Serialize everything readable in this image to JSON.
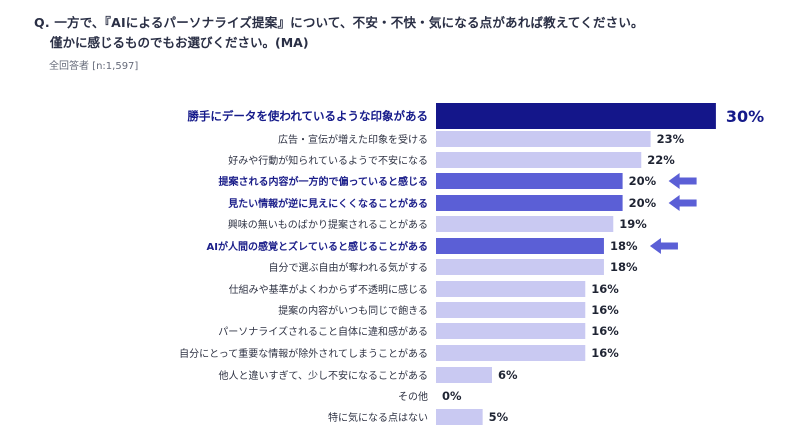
{
  "question": {
    "line1": "Q. 一方で、『AIによるパーソナライズ提案』について、不安・不快・気になる点があれば教えてください。",
    "line2": "僅かに感じるものでもお選びください。(MA)",
    "base": "全回答者 [n:1,597]"
  },
  "colors": {
    "top_bar": "#14168a",
    "highlight_bar": "#5b5fd6",
    "normal_bar": "#c9c9f2",
    "arrow": "#5b5fd6"
  },
  "chart_data": {
    "type": "bar",
    "orientation": "horizontal",
    "title": "",
    "unit": "%",
    "xlim": [
      0,
      30
    ],
    "categories": [
      "勝手にデータを使われているような印象がある",
      "広告・宣伝が増えた印象を受ける",
      "好みや行動が知られているようで不安になる",
      "提案される内容が一方的で偏っていると感じる",
      "見たい情報が逆に見えにくくなることがある",
      "興味の無いものばかり提案されることがある",
      "AIが人間の感覚とズレていると感じることがある",
      "自分で選ぶ自由が奪われる気がする",
      "仕組みや基準がよくわからず不透明に感じる",
      "提案の内容がいつも同じで飽きる",
      "パーソナライズされること自体に違和感がある",
      "自分にとって重要な情報が除外されてしまうことがある",
      "他人と違いすぎて、少し不安になることがある",
      "その他",
      "特に気になる点はない"
    ],
    "values": [
      30,
      23,
      22,
      20,
      20,
      19,
      18,
      18,
      16,
      16,
      16,
      16,
      6,
      0,
      5
    ],
    "value_labels": [
      "30%",
      "23%",
      "22%",
      "20%",
      "20%",
      "19%",
      "18%",
      "18%",
      "16%",
      "16%",
      "16%",
      "16%",
      "6%",
      "0%",
      "5%"
    ],
    "emphasis": [
      "top",
      "normal",
      "normal",
      "highlight",
      "highlight",
      "normal",
      "highlight",
      "normal",
      "normal",
      "normal",
      "normal",
      "normal",
      "normal",
      "normal",
      "normal"
    ],
    "arrows": [
      false,
      false,
      false,
      true,
      true,
      false,
      true,
      false,
      false,
      false,
      false,
      false,
      false,
      false,
      false
    ]
  }
}
